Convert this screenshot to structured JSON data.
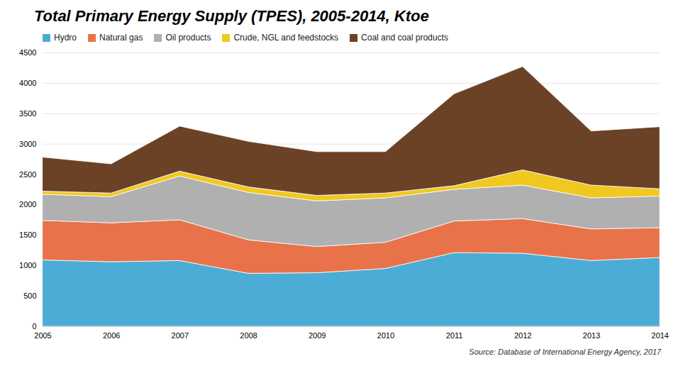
{
  "chart_data": {
    "type": "area",
    "stacked": true,
    "title": "Total Primary Energy Supply (TPES), 2005-2014, Ktoe",
    "x": [
      2005,
      2006,
      2007,
      2008,
      2009,
      2010,
      2011,
      2012,
      2013,
      2014
    ],
    "xlim": [
      2005,
      2014
    ],
    "xticks": [
      2005,
      2006,
      2007,
      2008,
      2009,
      2010,
      2011,
      2012,
      2013,
      2014
    ],
    "series": [
      {
        "name": "Hydro",
        "color": "#4bacd6",
        "values": [
          1090,
          1060,
          1080,
          870,
          880,
          950,
          1210,
          1200,
          1080,
          1130
        ]
      },
      {
        "name": "Natural gas",
        "color": "#e8734a",
        "values": [
          650,
          640,
          670,
          550,
          430,
          430,
          520,
          570,
          520,
          490
        ]
      },
      {
        "name": "Oil products",
        "color": "#b0b0b0",
        "values": [
          430,
          430,
          720,
          780,
          750,
          730,
          520,
          550,
          510,
          520
        ]
      },
      {
        "name": "Crude, NGL and feedstocks",
        "color": "#f0c820",
        "values": [
          50,
          60,
          80,
          90,
          90,
          80,
          60,
          250,
          210,
          120
        ]
      },
      {
        "name": "Coal and coal products",
        "color": "#6b4226",
        "values": [
          560,
          480,
          740,
          750,
          720,
          680,
          1510,
          1700,
          890,
          1020
        ]
      }
    ],
    "ylim": [
      0,
      4500
    ],
    "yticks": [
      0,
      500,
      1000,
      1500,
      2000,
      2500,
      3000,
      3500,
      4000,
      4500
    ],
    "grid": true,
    "legend": "upper left",
    "annotations": [
      "Source: Database of International Energy Agency, 2017"
    ]
  }
}
